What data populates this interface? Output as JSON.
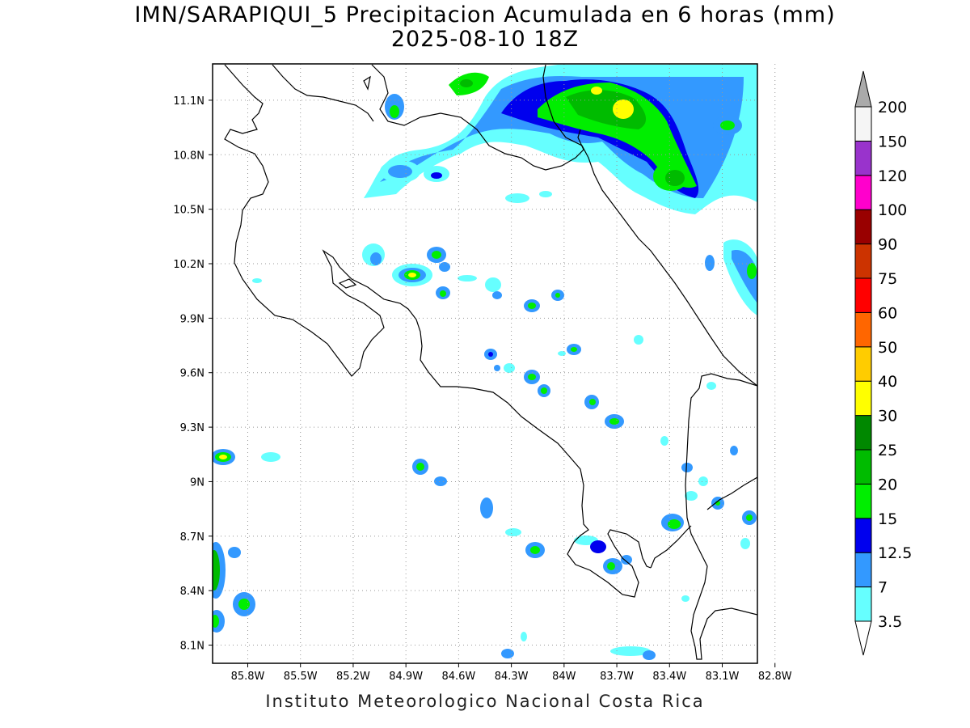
{
  "map": {
    "title": "IMN/SARAPIQUI_5 Precipitacion Acumulada en 6 horas (mm)",
    "valid_time": "2025-08-10 18Z",
    "credit": "Instituto Meteorologico Nacional Costa Rica",
    "lon_range": [
      -86.0,
      -82.9
    ],
    "lat_range": [
      8.0,
      11.3
    ],
    "lon_ticks": [
      "85.8W",
      "85.5W",
      "85.2W",
      "84.9W",
      "84.6W",
      "84.3W",
      "84W",
      "83.7W",
      "83.4W",
      "83.1W",
      "82.8W"
    ],
    "lat_ticks": [
      "11.1N",
      "10.8N",
      "10.5N",
      "10.2N",
      "9.9N",
      "9.6N",
      "9.3N",
      "9N",
      "8.7N",
      "8.4N",
      "8.1N"
    ],
    "grid": "dotted",
    "colorbar": {
      "unit": "mm",
      "levels": [
        "3.5",
        "7",
        "12.5",
        "15",
        "20",
        "25",
        "30",
        "40",
        "50",
        "60",
        "75",
        "90",
        "100",
        "120",
        "150",
        "200"
      ],
      "colors": [
        "#66ffff",
        "#3399ff",
        "#0000ee",
        "#00ee00",
        "#00bb00",
        "#008800",
        "#ffff00",
        "#ffcc00",
        "#ff6600",
        "#ff0000",
        "#cc3300",
        "#990000",
        "#ff00cc",
        "#9933cc",
        "#f5f5f5",
        "#aaaaaa"
      ]
    }
  }
}
